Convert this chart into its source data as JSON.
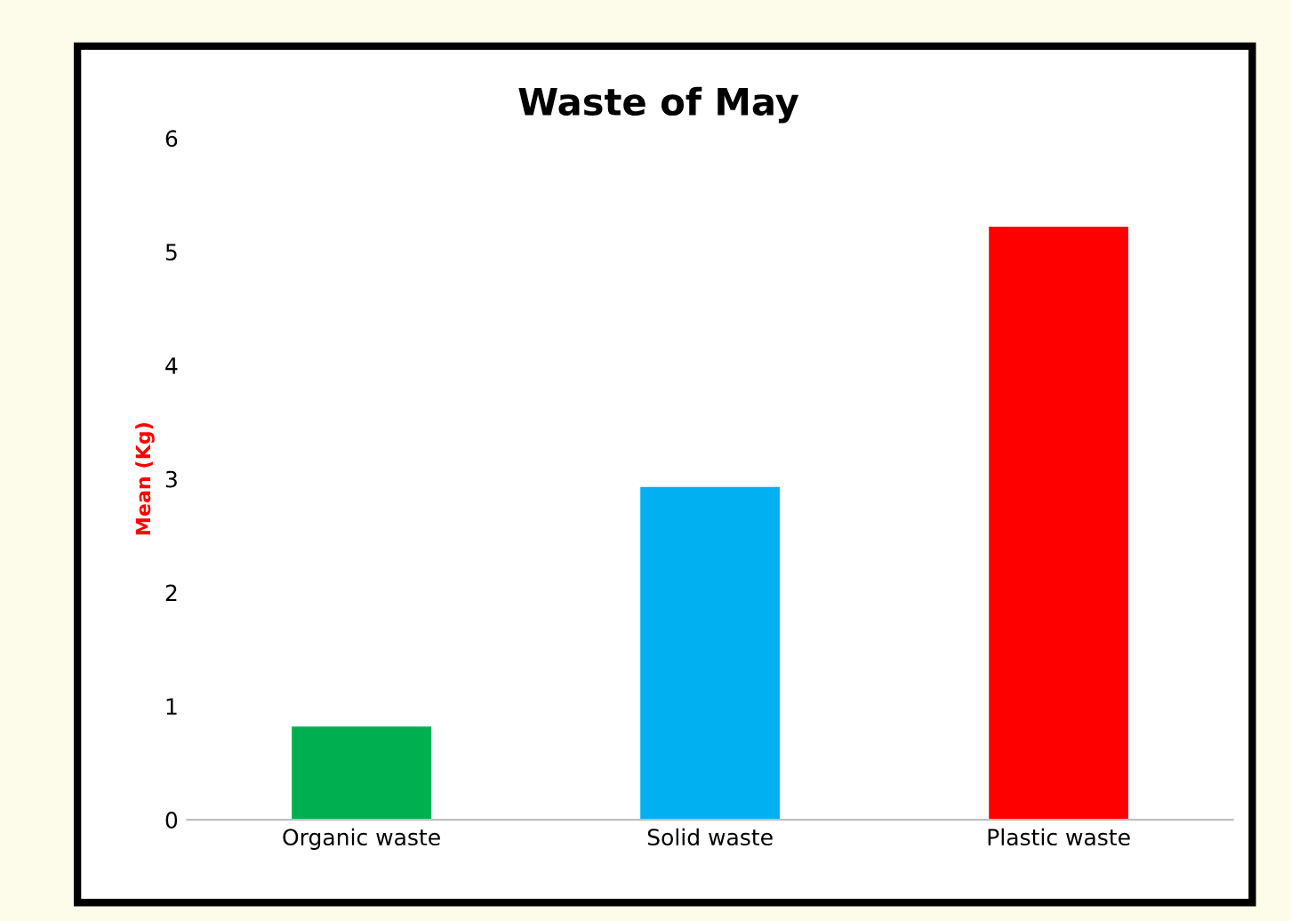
{
  "chart_data": {
    "type": "bar",
    "title": "Waste of May",
    "ylabel": "Mean (Kg)",
    "categories": [
      "Organic waste",
      "Solid waste",
      "Plastic waste"
    ],
    "values": [
      0.82,
      2.93,
      5.22
    ],
    "colors": [
      "#00b050",
      "#00b0f0",
      "#ff0000"
    ],
    "ylim": [
      0,
      6
    ],
    "yticks": [
      0,
      1,
      2,
      3,
      4,
      5,
      6
    ]
  }
}
